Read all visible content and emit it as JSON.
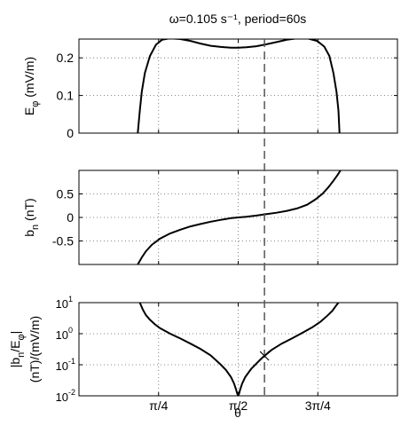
{
  "figure": {
    "title": "ω=0.105 s⁻¹, period=60s",
    "xlabel": "θ",
    "marker_theta": 1.83
  },
  "chart_data": [
    {
      "type": "line",
      "panel": "E_phi",
      "ylabel_main": "E",
      "ylabel_sub": "φ",
      "ylabel_unit": " (mV/m)",
      "xlim": [
        0,
        3.1416
      ],
      "ylim": [
        0,
        0.25
      ],
      "yticks": [
        0,
        0.1,
        0.2
      ],
      "ytick_labels": [
        "0",
        "0.1",
        "0.2"
      ],
      "grid": true,
      "series": [
        {
          "x": [
            0.58,
            0.6,
            0.62,
            0.65,
            0.7,
            0.76,
            0.82,
            0.9,
            1.0,
            1.1,
            1.2,
            1.3,
            1.4,
            1.5,
            1.571,
            1.65,
            1.75,
            1.85,
            1.95,
            2.05,
            2.15,
            2.25,
            2.35,
            2.42,
            2.47,
            2.51,
            2.54,
            2.56,
            2.57
          ],
          "y": [
            0,
            0.06,
            0.11,
            0.16,
            0.205,
            0.235,
            0.248,
            0.252,
            0.25,
            0.245,
            0.238,
            0.232,
            0.229,
            0.227,
            0.227,
            0.228,
            0.231,
            0.236,
            0.242,
            0.248,
            0.252,
            0.252,
            0.245,
            0.23,
            0.205,
            0.16,
            0.11,
            0.06,
            0
          ]
        }
      ]
    },
    {
      "type": "line",
      "panel": "b_n",
      "ylabel_main": "b",
      "ylabel_sub": "n",
      "ylabel_unit": " (nT)",
      "xlim": [
        0,
        3.1416
      ],
      "ylim": [
        -1,
        1
      ],
      "yticks": [
        -0.5,
        0,
        0.5
      ],
      "ytick_labels": [
        "-0.5",
        "0",
        "0.5"
      ],
      "grid": true,
      "series": [
        {
          "x": [
            0.58,
            0.62,
            0.66,
            0.72,
            0.8,
            0.9,
            1.0,
            1.1,
            1.2,
            1.3,
            1.4,
            1.5,
            1.571,
            1.65,
            1.75,
            1.85,
            1.95,
            2.05,
            2.15,
            2.25,
            2.33,
            2.4,
            2.46,
            2.51,
            2.55,
            2.58
          ],
          "y": [
            -1.0,
            -0.85,
            -0.72,
            -0.58,
            -0.45,
            -0.34,
            -0.26,
            -0.19,
            -0.14,
            -0.09,
            -0.05,
            -0.015,
            0.0,
            0.015,
            0.04,
            0.07,
            0.1,
            0.14,
            0.19,
            0.27,
            0.38,
            0.5,
            0.64,
            0.78,
            0.9,
            1.0
          ]
        }
      ]
    },
    {
      "type": "line",
      "panel": "ratio",
      "ylabel_line1": "|b",
      "ylabel_line1_sub": "n",
      "ylabel_line1_mid": "/E",
      "ylabel_line1_sub2": "φ",
      "ylabel_line1_end": "|",
      "ylabel_line2": "(nT)/(mV/m)",
      "xlim": [
        0,
        3.1416
      ],
      "ylim": [
        0.01,
        10
      ],
      "yscale": "log",
      "yticks": [
        0.01,
        0.1,
        1,
        10
      ],
      "ytick_labels": [
        {
          "base": "10",
          "exp": "-2"
        },
        {
          "base": "10",
          "exp": "-1"
        },
        {
          "base": "10",
          "exp": "0"
        },
        {
          "base": "10",
          "exp": "1"
        }
      ],
      "xticks": [
        0.7854,
        1.5708,
        2.3562
      ],
      "xtick_labels": [
        "π/4",
        "π/2",
        "3π/4"
      ],
      "grid": true,
      "series": [
        {
          "x": [
            0.6,
            0.63,
            0.66,
            0.7,
            0.75,
            0.8,
            0.9,
            1.0,
            1.1,
            1.2,
            1.3,
            1.4,
            1.45,
            1.5,
            1.53,
            1.55,
            1.56,
            1.571,
            1.58,
            1.59,
            1.61,
            1.64,
            1.7,
            1.8,
            1.9,
            2.0,
            2.1,
            2.2,
            2.3,
            2.38,
            2.45,
            2.5,
            2.53,
            2.56
          ],
          "y": [
            10,
            6,
            4,
            2.8,
            2.0,
            1.5,
            1.0,
            0.7,
            0.48,
            0.32,
            0.2,
            0.1,
            0.068,
            0.04,
            0.025,
            0.016,
            0.012,
            0.01,
            0.012,
            0.016,
            0.025,
            0.04,
            0.075,
            0.16,
            0.3,
            0.48,
            0.7,
            1.05,
            1.6,
            2.4,
            3.8,
            5.5,
            7.5,
            10
          ]
        }
      ]
    }
  ]
}
